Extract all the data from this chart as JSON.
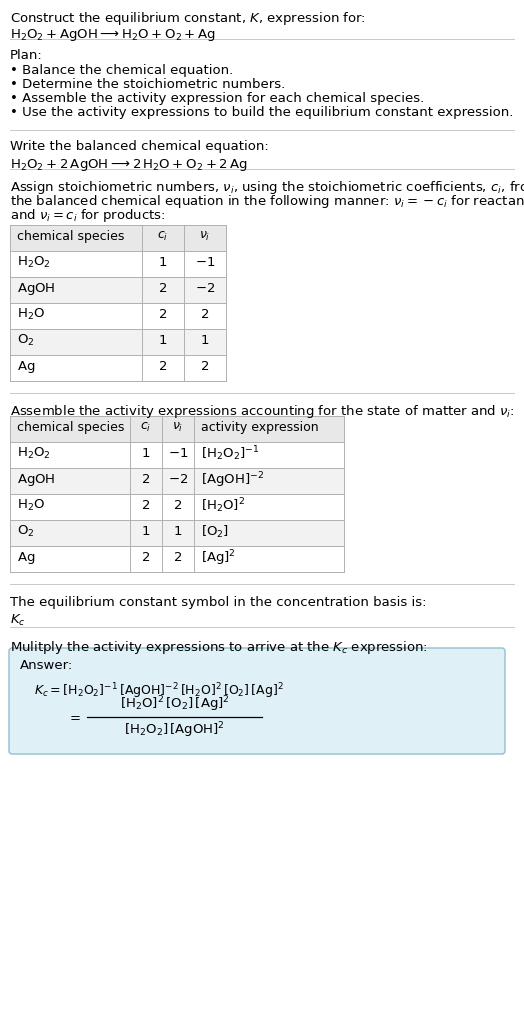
{
  "title_line1": "Construct the equilibrium constant, $K$, expression for:",
  "title_line2": "$\\mathrm{H_2O_2} + \\mathrm{AgOH} \\longrightarrow \\mathrm{H_2O} + \\mathrm{O_2} + \\mathrm{Ag}$",
  "plan_header": "Plan:",
  "plan_items": [
    "• Balance the chemical equation.",
    "• Determine the stoichiometric numbers.",
    "• Assemble the activity expression for each chemical species.",
    "• Use the activity expressions to build the equilibrium constant expression."
  ],
  "balanced_header": "Write the balanced chemical equation:",
  "balanced_eq": "$\\mathrm{H_2O_2} + 2\\,\\mathrm{AgOH} \\longrightarrow 2\\,\\mathrm{H_2O} + \\mathrm{O_2} + 2\\,\\mathrm{Ag}$",
  "stoich_header_parts": [
    "Assign stoichiometric numbers, $\\nu_i$, using the stoichiometric coefficients, $c_i$, from",
    "the balanced chemical equation in the following manner: $\\nu_i = -c_i$ for reactants",
    "and $\\nu_i = c_i$ for products:"
  ],
  "table1_cols": [
    "chemical species",
    "$c_i$",
    "$\\nu_i$"
  ],
  "table1_rows": [
    [
      "$\\mathrm{H_2O_2}$",
      "1",
      "$-1$"
    ],
    [
      "$\\mathrm{AgOH}$",
      "2",
      "$-2$"
    ],
    [
      "$\\mathrm{H_2O}$",
      "2",
      "2"
    ],
    [
      "$\\mathrm{O_2}$",
      "1",
      "1"
    ],
    [
      "$\\mathrm{Ag}$",
      "2",
      "2"
    ]
  ],
  "activity_header": "Assemble the activity expressions accounting for the state of matter and $\\nu_i$:",
  "table2_cols": [
    "chemical species",
    "$c_i$",
    "$\\nu_i$",
    "activity expression"
  ],
  "table2_rows": [
    [
      "$\\mathrm{H_2O_2}$",
      "1",
      "$-1$",
      "$[\\mathrm{H_2O_2}]^{-1}$"
    ],
    [
      "$\\mathrm{AgOH}$",
      "2",
      "$-2$",
      "$[\\mathrm{AgOH}]^{-2}$"
    ],
    [
      "$\\mathrm{H_2O}$",
      "2",
      "2",
      "$[\\mathrm{H_2O}]^{2}$"
    ],
    [
      "$\\mathrm{O_2}$",
      "1",
      "1",
      "$[\\mathrm{O_2}]$"
    ],
    [
      "$\\mathrm{Ag}$",
      "2",
      "2",
      "$[\\mathrm{Ag}]^{2}$"
    ]
  ],
  "kc_header": "The equilibrium constant symbol in the concentration basis is:",
  "kc_symbol": "$K_c$",
  "multiply_header": "Mulitply the activity expressions to arrive at the $K_c$ expression:",
  "answer_label": "Answer:",
  "kc_eq_line1": "$K_c = [\\mathrm{H_2O_2}]^{-1}\\,[\\mathrm{AgOH}]^{-2}\\,[\\mathrm{H_2O}]^{2}\\,[\\mathrm{O_2}]\\,[\\mathrm{Ag}]^{2}$",
  "kc_fraction_num": "$[\\mathrm{H_2O}]^2\\,[\\mathrm{O_2}]\\,[\\mathrm{Ag}]^2$",
  "kc_fraction_den": "$[\\mathrm{H_2O_2}]\\,[\\mathrm{AgOH}]^2$",
  "bg_color": "#ffffff",
  "text_color": "#000000",
  "table_header_bg": "#e8e8e8",
  "table_row_bg_odd": "#ffffff",
  "table_row_bg_even": "#f2f2f2",
  "table_border_color": "#b0b0b0",
  "answer_box_bg": "#dff0f7",
  "answer_box_border": "#90bfd0",
  "separator_color": "#c8c8c8",
  "font_size": 9.5,
  "header_font_size": 9.0
}
